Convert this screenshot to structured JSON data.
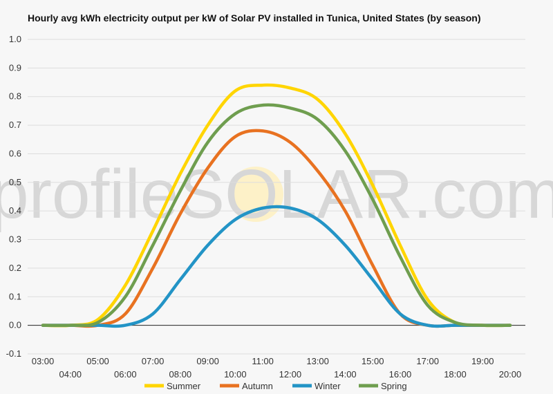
{
  "chart_data": {
    "type": "line",
    "title": "Hourly avg kWh electricity output per kW of Solar PV installed in Tunica, United States (by season)",
    "xlabel": "",
    "ylabel": "",
    "ylim": [
      -0.1,
      1.0
    ],
    "yticks": [
      "-0.1",
      "0.0",
      "0.1",
      "0.2",
      "0.3",
      "0.4",
      "0.5",
      "0.6",
      "0.7",
      "0.8",
      "0.9",
      "1.0"
    ],
    "x": [
      "03:00",
      "04:00",
      "05:00",
      "06:00",
      "07:00",
      "08:00",
      "09:00",
      "10:00",
      "11:00",
      "12:00",
      "13:00",
      "14:00",
      "15:00",
      "16:00",
      "17:00",
      "18:00",
      "19:00",
      "20:00"
    ],
    "grid": true,
    "legend_position": "bottom",
    "series": [
      {
        "name": "Summer",
        "color": "#ffd500",
        "values": [
          0.0,
          0.0,
          0.02,
          0.14,
          0.33,
          0.53,
          0.7,
          0.82,
          0.84,
          0.83,
          0.79,
          0.67,
          0.49,
          0.28,
          0.09,
          0.01,
          0.0,
          0.0
        ]
      },
      {
        "name": "Autumn",
        "color": "#e87221",
        "values": [
          0.0,
          0.0,
          0.0,
          0.04,
          0.2,
          0.39,
          0.55,
          0.66,
          0.68,
          0.64,
          0.54,
          0.4,
          0.21,
          0.04,
          0.0,
          0.0,
          0.0,
          0.0
        ]
      },
      {
        "name": "Winter",
        "color": "#2394c6",
        "values": [
          0.0,
          0.0,
          0.0,
          0.0,
          0.04,
          0.16,
          0.28,
          0.37,
          0.41,
          0.41,
          0.37,
          0.28,
          0.16,
          0.04,
          0.0,
          0.0,
          0.0,
          0.0
        ]
      },
      {
        "name": "Spring",
        "color": "#6f9e4f",
        "values": [
          0.0,
          0.0,
          0.01,
          0.1,
          0.28,
          0.47,
          0.64,
          0.74,
          0.77,
          0.76,
          0.72,
          0.61,
          0.44,
          0.24,
          0.07,
          0.01,
          0.0,
          0.0
        ]
      }
    ],
    "watermark": "profileSOLAR.com"
  }
}
